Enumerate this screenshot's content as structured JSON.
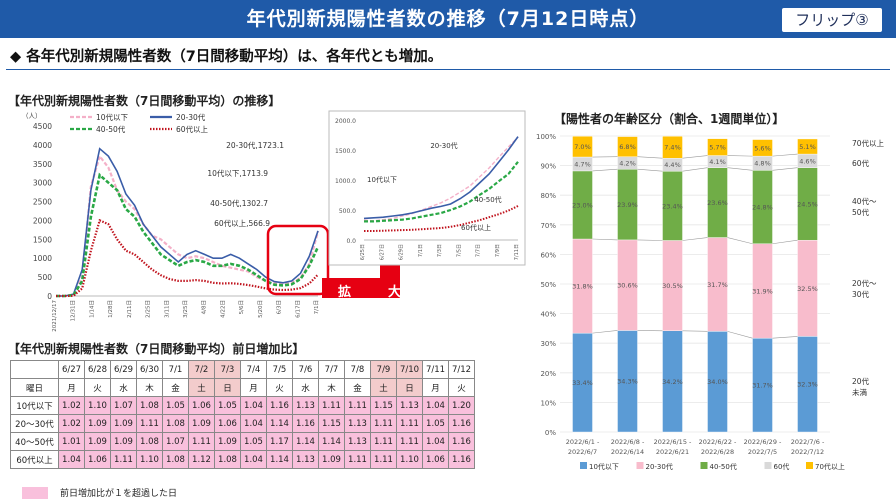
{
  "title": "年代別新規陽性者数の推移（7月12日時点）",
  "flip_label": "フリップ③",
  "headline": "◆ 各年代別新規陽性者数（7日間移動平均）は、各年代とも増加。",
  "left_chart_label": "【年代別新規陽性者数（7日間移動平均）の推移】",
  "zoom_label": "拡　大",
  "right_chart_label": "【陽性者の年齢区分（割合、1週間単位）】",
  "table_label": "【年代別新規陽性者数（7日間移動平均）前日増加比】",
  "legend_note": "前日増加比が１を超過した日",
  "colors": {
    "title_bg": "#1f5aa8",
    "under10": "#f4b0c8",
    "age20_30": "#3a5da8",
    "age40_50": "#2aa846",
    "age60plus": "#c0141e",
    "bar_under10": "#5b9bd5",
    "bar_20_30": "#f8bccc",
    "bar_40_50": "#70ad47",
    "bar_60s": "#d9d9d9",
    "bar_70plus": "#ffc000",
    "highlight": "#f9c0dc",
    "weekend": "#f3cccc",
    "zoom_red": "#e60012"
  },
  "chart_data": [
    {
      "type": "line",
      "unit_label": "（人）",
      "ylim": [
        0,
        4500
      ],
      "yticks": [
        "0",
        "500",
        "1000",
        "1500",
        "2000",
        "2500",
        "3000",
        "3500",
        "4000",
        "4500"
      ],
      "xtick_labels": [
        "2021/12/17",
        "12/31日",
        "1/14日",
        "1/28日",
        "2/11日",
        "2/25日",
        "3/11日",
        "3/25日",
        "4/8日",
        "4/22日",
        "5/6日",
        "5/20日",
        "6/3日",
        "6/17日",
        "7/1日"
      ],
      "x_count": 31,
      "series": [
        {
          "name": "10代以下",
          "style": "dashed",
          "values": [
            0,
            0,
            20,
            500,
            2900,
            3700,
            3400,
            2800,
            2500,
            2300,
            1900,
            1600,
            1500,
            1300,
            1100,
            1000,
            1050,
            1000,
            900,
            800,
            750,
            700,
            650,
            500,
            400,
            330,
            320,
            350,
            480,
            850,
            1713.9
          ]
        },
        {
          "name": "20-30代",
          "style": "solid",
          "values": [
            0,
            0,
            50,
            700,
            2800,
            3900,
            3700,
            3300,
            2700,
            2400,
            1900,
            1600,
            1300,
            1100,
            900,
            1100,
            1200,
            1100,
            1000,
            1000,
            1100,
            1000,
            850,
            700,
            500,
            380,
            350,
            400,
            600,
            1050,
            1723.1
          ]
        },
        {
          "name": "40-50代",
          "style": "dashed",
          "values": [
            0,
            0,
            20,
            400,
            2100,
            3200,
            3000,
            2800,
            2300,
            2100,
            1700,
            1400,
            1100,
            950,
            800,
            900,
            950,
            900,
            800,
            800,
            850,
            800,
            700,
            550,
            400,
            300,
            280,
            310,
            450,
            800,
            1302.7
          ]
        },
        {
          "name": "60代以上",
          "style": "dotted",
          "values": [
            0,
            0,
            5,
            200,
            1200,
            2000,
            1900,
            1500,
            1200,
            1100,
            900,
            700,
            550,
            450,
            400,
            400,
            420,
            400,
            350,
            330,
            340,
            320,
            290,
            250,
            200,
            170,
            160,
            170,
            210,
            330,
            566.9
          ]
        }
      ],
      "annotations": [
        "20-30代,1723.1",
        "10代以下,1713.9",
        "40-50代,1302.7",
        "60代以上,566.9"
      ]
    },
    {
      "type": "line",
      "ylim": [
        0,
        2000
      ],
      "yticks": [
        "0.0",
        "500.0",
        "1000.0",
        "1500.0",
        "2000.0"
      ],
      "xtick_labels": [
        "6/25日",
        "6/27日",
        "6/29日",
        "7/1日",
        "7/3日",
        "7/5日",
        "7/7日",
        "7/9日",
        "7/11日"
      ],
      "x_count": 17,
      "series": [
        {
          "name": "10代以下",
          "values": [
            330,
            320,
            340,
            360,
            400,
            440,
            500,
            560,
            620,
            700,
            800,
            900,
            1050,
            1200,
            1380,
            1550,
            1713.9
          ]
        },
        {
          "name": "20-30代",
          "values": [
            360,
            370,
            380,
            400,
            420,
            450,
            490,
            530,
            560,
            600,
            690,
            800,
            950,
            1100,
            1300,
            1500,
            1723.1
          ]
        },
        {
          "name": "40-50代",
          "values": [
            310,
            310,
            320,
            330,
            340,
            360,
            390,
            420,
            450,
            500,
            560,
            640,
            750,
            850,
            980,
            1100,
            1302.7
          ]
        },
        {
          "name": "60代以上",
          "values": [
            150,
            150,
            155,
            160,
            165,
            170,
            180,
            190,
            200,
            220,
            250,
            290,
            330,
            380,
            430,
            490,
            566.9
          ]
        }
      ],
      "annotations": [
        "20-30代",
        "10代以下",
        "40-50代",
        "60代以上"
      ]
    },
    {
      "type": "bar",
      "stacked": true,
      "ylim": [
        0,
        100
      ],
      "yticks": [
        "0%",
        "10%",
        "20%",
        "30%",
        "40%",
        "50%",
        "60%",
        "70%",
        "80%",
        "90%",
        "100%"
      ],
      "categories": [
        "2022/6/1 -\n2022/6/7",
        "2022/6/8 -\n2022/6/14",
        "2022/6/15 -\n2022/6/21",
        "2022/6/22 -\n2022/6/28",
        "2022/6/29 -\n2022/7/5",
        "2022/7/6 -\n2022/7/12"
      ],
      "category_lines": [
        [
          "2022/6/1 -",
          "2022/6/7"
        ],
        [
          "2022/6/8 -",
          "2022/6/14"
        ],
        [
          "2022/6/15 -",
          "2022/6/21"
        ],
        [
          "2022/6/22 -",
          "2022/6/28"
        ],
        [
          "2022/6/29 -",
          "2022/7/5"
        ],
        [
          "2022/7/6 -",
          "2022/7/12"
        ]
      ],
      "series": [
        {
          "name": "10代以下",
          "values": [
            33.4,
            34.3,
            34.2,
            34.0,
            31.7,
            32.3
          ],
          "labels": [
            "33.4%",
            "34.3%",
            "34.2%",
            "34.0%",
            "31.7%",
            "32.3%"
          ]
        },
        {
          "name": "20-30代",
          "values": [
            31.8,
            30.6,
            30.5,
            31.7,
            31.9,
            32.5
          ],
          "labels": [
            "31.8%",
            "30.6%",
            "30.5%",
            "31.7%",
            "31.9%",
            "32.5%"
          ]
        },
        {
          "name": "40-50代",
          "values": [
            23.0,
            23.9,
            23.4,
            23.6,
            24.8,
            24.5
          ],
          "labels": [
            "23.0%",
            "23.9%",
            "23.4%",
            "23.6%",
            "24.8%",
            "24.5%"
          ]
        },
        {
          "name": "60代",
          "values": [
            4.7,
            4.2,
            4.4,
            4.1,
            4.8,
            4.6
          ],
          "labels": [
            "4.7%",
            "4.2%",
            "4.4%",
            "4.1%",
            "4.8%",
            "4.6%"
          ]
        },
        {
          "name": "70代以上",
          "values": [
            7.0,
            6.8,
            7.4,
            5.7,
            5.6,
            5.1
          ],
          "labels": [
            "7.0%",
            "6.8%",
            "7.4%",
            "5.7%",
            "5.6%",
            "5.1%"
          ]
        }
      ],
      "side_labels": [
        [
          "70代以上"
        ],
        [
          "60代"
        ],
        [
          "40代～",
          "50代"
        ],
        [
          "20代～",
          "30代"
        ],
        [
          "20代",
          "未満"
        ]
      ]
    },
    {
      "type": "table",
      "dates": [
        "6/27",
        "6/28",
        "6/29",
        "6/30",
        "7/1",
        "7/2",
        "7/3",
        "7/4",
        "7/5",
        "7/6",
        "7/7",
        "7/8",
        "7/9",
        "7/10",
        "7/11",
        "7/12"
      ],
      "weekend_date_idx": [
        5,
        6,
        12,
        13
      ],
      "weekday_label": "曜日",
      "weekdays": [
        "月",
        "火",
        "水",
        "木",
        "金",
        "土",
        "日",
        "月",
        "火",
        "水",
        "木",
        "金",
        "土",
        "日",
        "月",
        "火"
      ],
      "rows": [
        {
          "label": "10代以下",
          "values": [
            "1.02",
            "1.10",
            "1.07",
            "1.08",
            "1.05",
            "1.06",
            "1.05",
            "1.04",
            "1.16",
            "1.13",
            "1.11",
            "1.11",
            "1.15",
            "1.13",
            "1.04",
            "1.20"
          ]
        },
        {
          "label": "20～30代",
          "values": [
            "1.02",
            "1.09",
            "1.09",
            "1.11",
            "1.08",
            "1.09",
            "1.06",
            "1.04",
            "1.14",
            "1.16",
            "1.15",
            "1.13",
            "1.11",
            "1.11",
            "1.05",
            "1.16"
          ]
        },
        {
          "label": "40～50代",
          "values": [
            "1.01",
            "1.09",
            "1.09",
            "1.08",
            "1.07",
            "1.11",
            "1.09",
            "1.05",
            "1.17",
            "1.14",
            "1.14",
            "1.13",
            "1.11",
            "1.11",
            "1.04",
            "1.16"
          ]
        },
        {
          "label": "60代以上",
          "values": [
            "1.04",
            "1.06",
            "1.11",
            "1.10",
            "1.08",
            "1.12",
            "1.08",
            "1.04",
            "1.14",
            "1.13",
            "1.09",
            "1.11",
            "1.11",
            "1.10",
            "1.06",
            "1.16"
          ]
        }
      ]
    }
  ]
}
